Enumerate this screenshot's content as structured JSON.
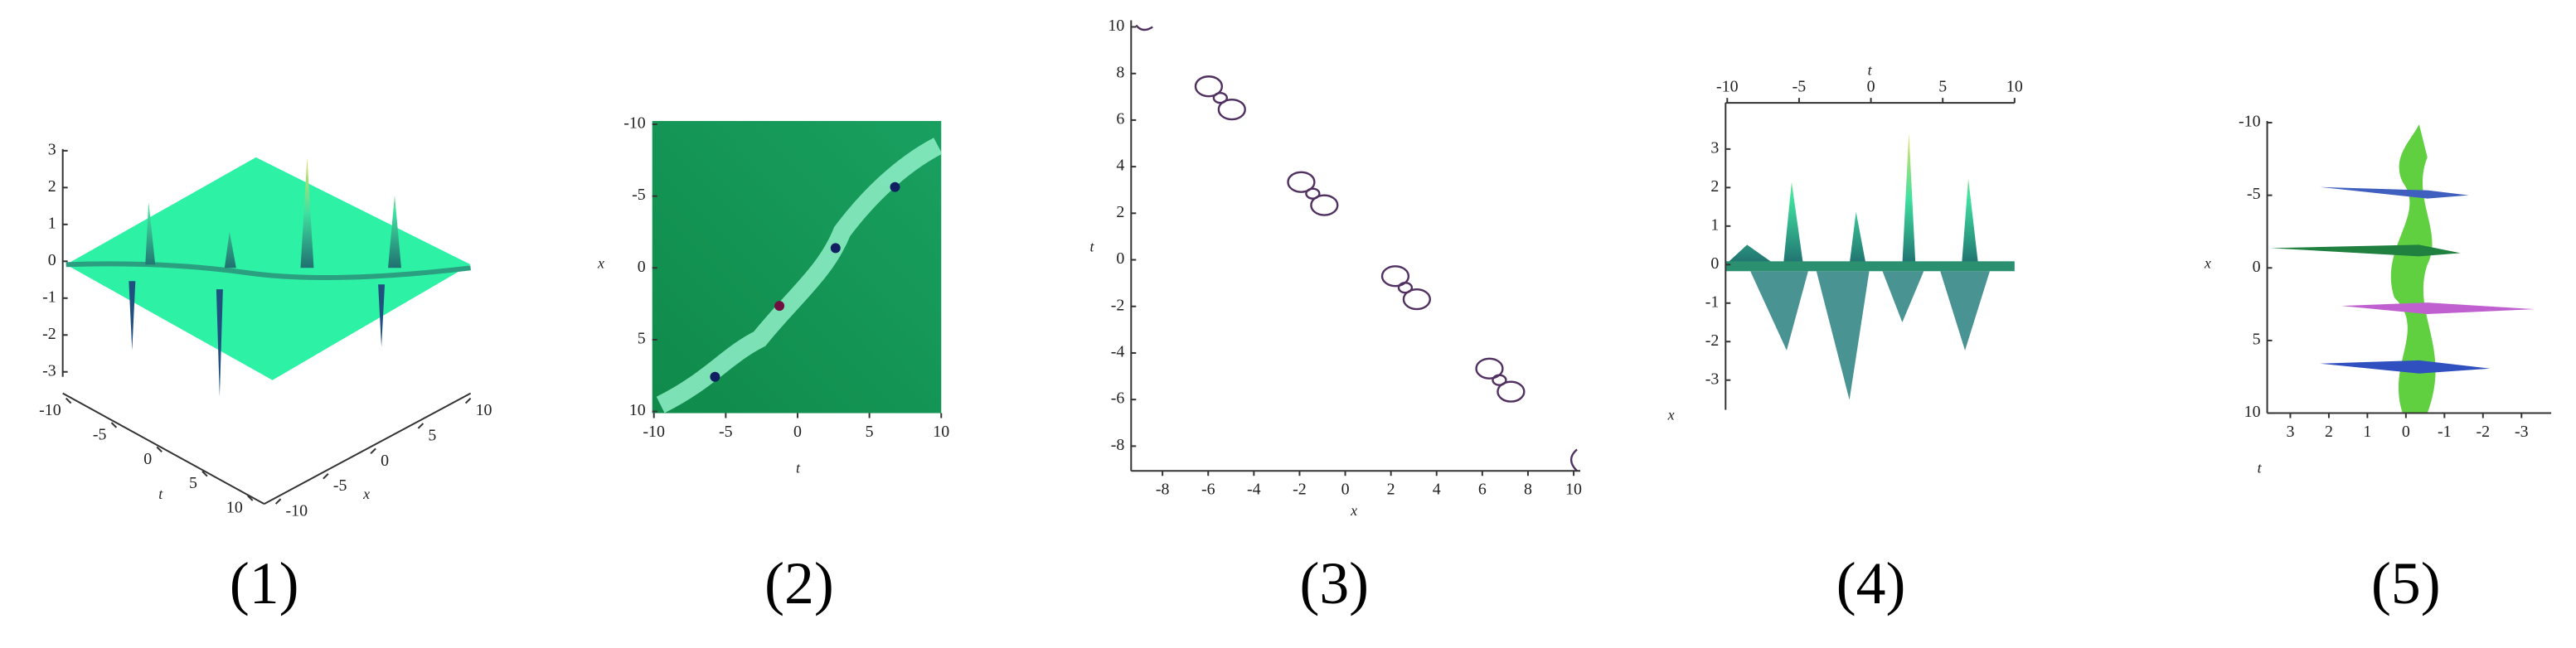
{
  "panels": [
    {
      "caption": "(1)",
      "z_ticks": [
        "3",
        "2",
        "1",
        "0",
        "-1",
        "-2",
        "-3"
      ],
      "t_label": "t",
      "t_ticks": [
        "-10",
        "-5",
        "0",
        "5",
        "10"
      ],
      "x_label": "x",
      "x_ticks": [
        "10",
        "5",
        "0",
        "-5",
        "-10"
      ]
    },
    {
      "caption": "(2)",
      "y_label": "x",
      "y_ticks": [
        "-10",
        "-5",
        "0",
        "5",
        "10"
      ],
      "x_label": "t",
      "x_ticks": [
        "-10",
        "-5",
        "0",
        "5",
        "10"
      ]
    },
    {
      "caption": "(3)",
      "y_label": "t",
      "y_ticks": [
        "10",
        "8",
        "6",
        "4",
        "2",
        "0",
        "-2",
        "-4",
        "-6",
        "-8"
      ],
      "x_label": "x",
      "x_ticks": [
        "-8",
        "-6",
        "-4",
        "-2",
        "0",
        "2",
        "4",
        "6",
        "8",
        "10"
      ]
    },
    {
      "caption": "(4)",
      "t_label": "t",
      "t_ticks": [
        "-10",
        "-5",
        "0",
        "5",
        "10"
      ],
      "z_ticks": [
        "3",
        "2",
        "1",
        "0",
        "-1",
        "-2",
        "-3"
      ],
      "x_label": "x"
    },
    {
      "caption": "(5)",
      "x_label": "x",
      "x_ticks": [
        "-10",
        "-5",
        "0",
        "5",
        "10"
      ],
      "t_label": "t",
      "z_ticks": [
        "3",
        "2",
        "1",
        "0",
        "-1",
        "-2",
        "-3"
      ]
    }
  ]
}
